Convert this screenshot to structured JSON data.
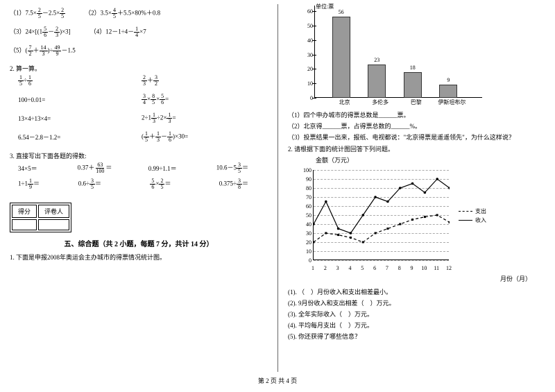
{
  "footer": "第 2 页 共 4 页",
  "left": {
    "p1": {
      "e1_pre": "（1）7.5×",
      "e1_f1n": "2",
      "e1_f1d": "5",
      "e1_mid": "－2.5×",
      "e1_f2n": "2",
      "e1_f2d": "5",
      "e2_pre": "（2）",
      "e2_a": "3.5×",
      "e2_f1n": "4",
      "e2_f1d": "5",
      "e2_b": "＋5.5×80%＋0.8",
      "e3_pre": "（3）",
      "e3_a": "24×",
      "e3_br_l": "[(1",
      "e3_f1n": "5",
      "e3_f1d": "6",
      "e3_m": "－",
      "e3_f2n": "2",
      "e3_f2d": "3",
      "e3_br_r": ")×3]",
      "e4_pre": "（4）12－1÷4－",
      "e4_fn": "1",
      "e4_fd": "4",
      "e4_suf": "×7",
      "e5_pre": "（5）",
      "e5_lp": "(",
      "e5_f1n": "7",
      "e5_f1d": "2",
      "e5_plus": "＋",
      "e5_f2n": "14",
      "e5_f2d": "3",
      "e5_rp": ")÷",
      "e5_f3n": "49",
      "e5_f3d": "9",
      "e5_suf": "－1.5"
    },
    "p2": {
      "title": "2. 算一算。",
      "r1a_f1n": "1",
      "r1a_f1d": "5",
      "r1a_op": "÷",
      "r1a_f2n": "1",
      "r1a_f2d": "6",
      "r1b_f1n": "2",
      "r1b_f1d": "3",
      "r1b_op": "＋",
      "r1b_f2n": "3",
      "r1b_f2d": "2",
      "r2a": "100÷0.01=",
      "r2b_f1n": "3",
      "r2b_f1d": "4",
      "r2b_m1": "×",
      "r2b_f2n": "8",
      "r2b_f2d": "5",
      "r2b_m2": "×",
      "r2b_f3n": "5",
      "r2b_f3d": "6",
      "r2b_eq": "=",
      "r3a": "13×4÷13×4=",
      "r3b_a": "2÷1",
      "r3b_f1n": "1",
      "r3b_f1d": "3",
      "r3b_b": "÷2×",
      "r3b_f2n": "1",
      "r3b_f2d": "3",
      "r3b_eq": "=",
      "r4a": "6.54－2.8－1.2=",
      "r4b_lp": "(",
      "r4b_f1n": "1",
      "r4b_f1d": "5",
      "r4b_p1": "＋",
      "r4b_f2n": "1",
      "r4b_f2d": "3",
      "r4b_p2": "－",
      "r4b_f3n": "1",
      "r4b_f3d": "6",
      "r4b_rp": ")×30="
    },
    "p3": {
      "title": "3. 直接写出下面各题的得数:",
      "r1a": "34×5＝",
      "r1b_a": "0.37＋",
      "r1b_fn": "63",
      "r1b_fd": "100",
      "r1b_eq": "＝",
      "r1c": "0.99÷1.1＝",
      "r1d_a": "10.6－5",
      "r1d_fn": "3",
      "r1d_fd": "5",
      "r1d_eq": "＝",
      "r2a_a": "1÷1",
      "r2a_fn": "1",
      "r2a_fd": "9",
      "r2a_eq": "＝",
      "r2b_a": "0.6÷",
      "r2b_fn": "3",
      "r2b_fd": "5",
      "r2b_eq": "＝",
      "r2c_f1n": "5",
      "r2c_f1d": "6",
      "r2c_m": "×",
      "r2c_f2n": "2",
      "r2c_f2d": "5",
      "r2c_eq": "＝",
      "r2d_a": "0.375÷",
      "r2d_fn": "3",
      "r2d_fd": "8",
      "r2d_eq": "＝"
    },
    "scorebox": {
      "c1": "得分",
      "c2": "评卷人"
    },
    "sec5_title": "五、综合题（共 2 小题，每题 7 分，共计 14 分）",
    "q1": "1. 下面是申报2008年奥运会主办城市的得票情况统计图。"
  },
  "right": {
    "bar_chart": {
      "unit": "单位:票",
      "ymax": 60,
      "ytick_step": 10,
      "categories": [
        "北京",
        "多伦多",
        "巴黎",
        "伊斯坦布尔"
      ],
      "values": [
        56,
        23,
        18,
        9
      ],
      "bar_color": "#999999",
      "border_color": "#333333",
      "background": "#ffffff"
    },
    "bar_q1": "（1）四个申办城市的得票总数是______票。",
    "bar_q2": "（2）北京得______票，占得票总数的______%。",
    "bar_q3": "（3）投票结果一出来，报纸、电视都说：\"北京得票是遥遥领先\"，为什么这样说？",
    "q2": "2. 请根据下面的统计图回答下列问题。",
    "line_title": "金额（万元）",
    "line_chart": {
      "xlabels": [
        "1",
        "2",
        "3",
        "4",
        "5",
        "6",
        "7",
        "8",
        "9",
        "10",
        "11",
        "12"
      ],
      "ymax": 100,
      "ytick_step": 10,
      "series1_name": "支出",
      "series1_style": "dashed",
      "series1": [
        20,
        30,
        28,
        25,
        20,
        30,
        35,
        40,
        45,
        48,
        50,
        42
      ],
      "series2_name": "收入",
      "series2_style": "solid",
      "series2": [
        40,
        65,
        35,
        30,
        50,
        70,
        65,
        80,
        85,
        75,
        90,
        80
      ],
      "colors": {
        "line": "#000000",
        "grid": "#cccccc"
      }
    },
    "x_axis_label": "月份（月）",
    "lq1": "(1). （　）月份收入和支出相差最小。",
    "lq2": "(2). 9月份收入和支出相差（　）万元。",
    "lq3": "(3). 全年实际收入（　）万元。",
    "lq4": "(4). 平均每月支出（　）万元。",
    "lq5": "(5). 你还获得了哪些信息？"
  }
}
